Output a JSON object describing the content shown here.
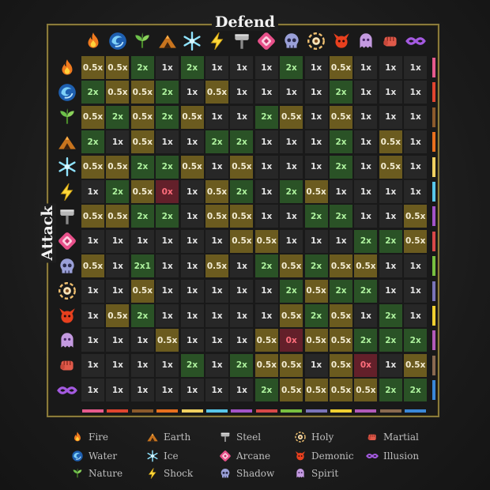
{
  "titles": {
    "defend": "Defend",
    "attack": "Attack"
  },
  "types": [
    {
      "key": "fire",
      "label": "Fire",
      "icon": "fire-icon",
      "color": "#e65a8c"
    },
    {
      "key": "water",
      "label": "Water",
      "icon": "water-icon",
      "color": "#e0452f"
    },
    {
      "key": "nature",
      "label": "Nature",
      "icon": "nature-icon",
      "color": "#8b5a2b"
    },
    {
      "key": "earth",
      "label": "Earth",
      "icon": "earth-icon",
      "color": "#e8701e"
    },
    {
      "key": "ice",
      "label": "Ice",
      "icon": "ice-icon",
      "color": "#f0d060"
    },
    {
      "key": "shock",
      "label": "Shock",
      "icon": "shock-icon",
      "color": "#58c6e8"
    },
    {
      "key": "steel",
      "label": "Steel",
      "icon": "steel-icon",
      "color": "#a354c8"
    },
    {
      "key": "arcane",
      "label": "Arcane",
      "icon": "arcane-icon",
      "color": "#d84848"
    },
    {
      "key": "shadow",
      "label": "Shadow",
      "icon": "shadow-icon",
      "color": "#78c040"
    },
    {
      "key": "holy",
      "label": "Holy",
      "icon": "holy-icon",
      "color": "#7a74b8"
    },
    {
      "key": "demonic",
      "label": "Demonic",
      "icon": "demonic-icon",
      "color": "#f0d030"
    },
    {
      "key": "spirit",
      "label": "Spirit",
      "icon": "spirit-icon",
      "color": "#b25ab8"
    },
    {
      "key": "martial",
      "label": "Martial",
      "icon": "martial-icon",
      "color": "#8a6a50"
    },
    {
      "key": "illusion",
      "label": "Illusion",
      "icon": "illusion-icon",
      "color": "#3a88d8"
    }
  ],
  "matrix": [
    [
      "0.5x",
      "0.5x",
      "2x",
      "1x",
      "2x",
      "1x",
      "1x",
      "1x",
      "2x",
      "1x",
      "0.5x",
      "1x",
      "1x",
      "1x"
    ],
    [
      "2x",
      "0.5x",
      "0.5x",
      "2x",
      "1x",
      "0.5x",
      "1x",
      "1x",
      "1x",
      "1x",
      "2x",
      "1x",
      "1x",
      "1x"
    ],
    [
      "0.5x",
      "2x",
      "0.5x",
      "2x",
      "0.5x",
      "1x",
      "1x",
      "2x",
      "0.5x",
      "1x",
      "0.5x",
      "1x",
      "1x",
      "1x"
    ],
    [
      "2x",
      "1x",
      "0.5x",
      "1x",
      "1x",
      "2x",
      "2x",
      "1x",
      "1x",
      "1x",
      "2x",
      "1x",
      "0.5x",
      "1x"
    ],
    [
      "0.5x",
      "0.5x",
      "2x",
      "2x",
      "0.5x",
      "1x",
      "0.5x",
      "1x",
      "1x",
      "1x",
      "2x",
      "1x",
      "0.5x",
      "1x"
    ],
    [
      "1x",
      "2x",
      "0.5x",
      "0x",
      "1x",
      "0.5x",
      "2x",
      "1x",
      "2x",
      "0.5x",
      "1x",
      "1x",
      "1x",
      "1x"
    ],
    [
      "0.5x",
      "0.5x",
      "2x",
      "2x",
      "1x",
      "0.5x",
      "0.5x",
      "1x",
      "1x",
      "2x",
      "2x",
      "1x",
      "1x",
      "0.5x"
    ],
    [
      "1x",
      "1x",
      "1x",
      "1x",
      "1x",
      "1x",
      "0.5x",
      "0.5x",
      "1x",
      "1x",
      "1x",
      "2x",
      "2x",
      "0.5x"
    ],
    [
      "0.5x",
      "1x",
      "2x1",
      "1x",
      "1x",
      "0.5x",
      "1x",
      "2x",
      "0.5x",
      "2x",
      "0.5x",
      "0.5x",
      "1x",
      "1x"
    ],
    [
      "1x",
      "1x",
      "0.5x",
      "1x",
      "1x",
      "1x",
      "1x",
      "1x",
      "2x",
      "0.5x",
      "2x",
      "2x",
      "1x",
      "1x"
    ],
    [
      "1x",
      "0.5x",
      "2x",
      "1x",
      "1x",
      "1x",
      "1x",
      "1x",
      "0.5x",
      "2x",
      "0.5x",
      "1x",
      "2x",
      "1x"
    ],
    [
      "1x",
      "1x",
      "1x",
      "0.5x",
      "1x",
      "1x",
      "1x",
      "0.5x",
      "0x",
      "0.5x",
      "0.5x",
      "2x",
      "2x",
      "2x"
    ],
    [
      "1x",
      "1x",
      "1x",
      "1x",
      "2x",
      "1x",
      "2x",
      "0.5x",
      "0.5x",
      "1x",
      "0.5x",
      "0x",
      "1x",
      "0.5x"
    ],
    [
      "1x",
      "1x",
      "1x",
      "1x",
      "1x",
      "1x",
      "1x",
      "2x",
      "0.5x",
      "0.5x",
      "0.5x",
      "0.5x",
      "2x",
      "2x"
    ]
  ]
}
